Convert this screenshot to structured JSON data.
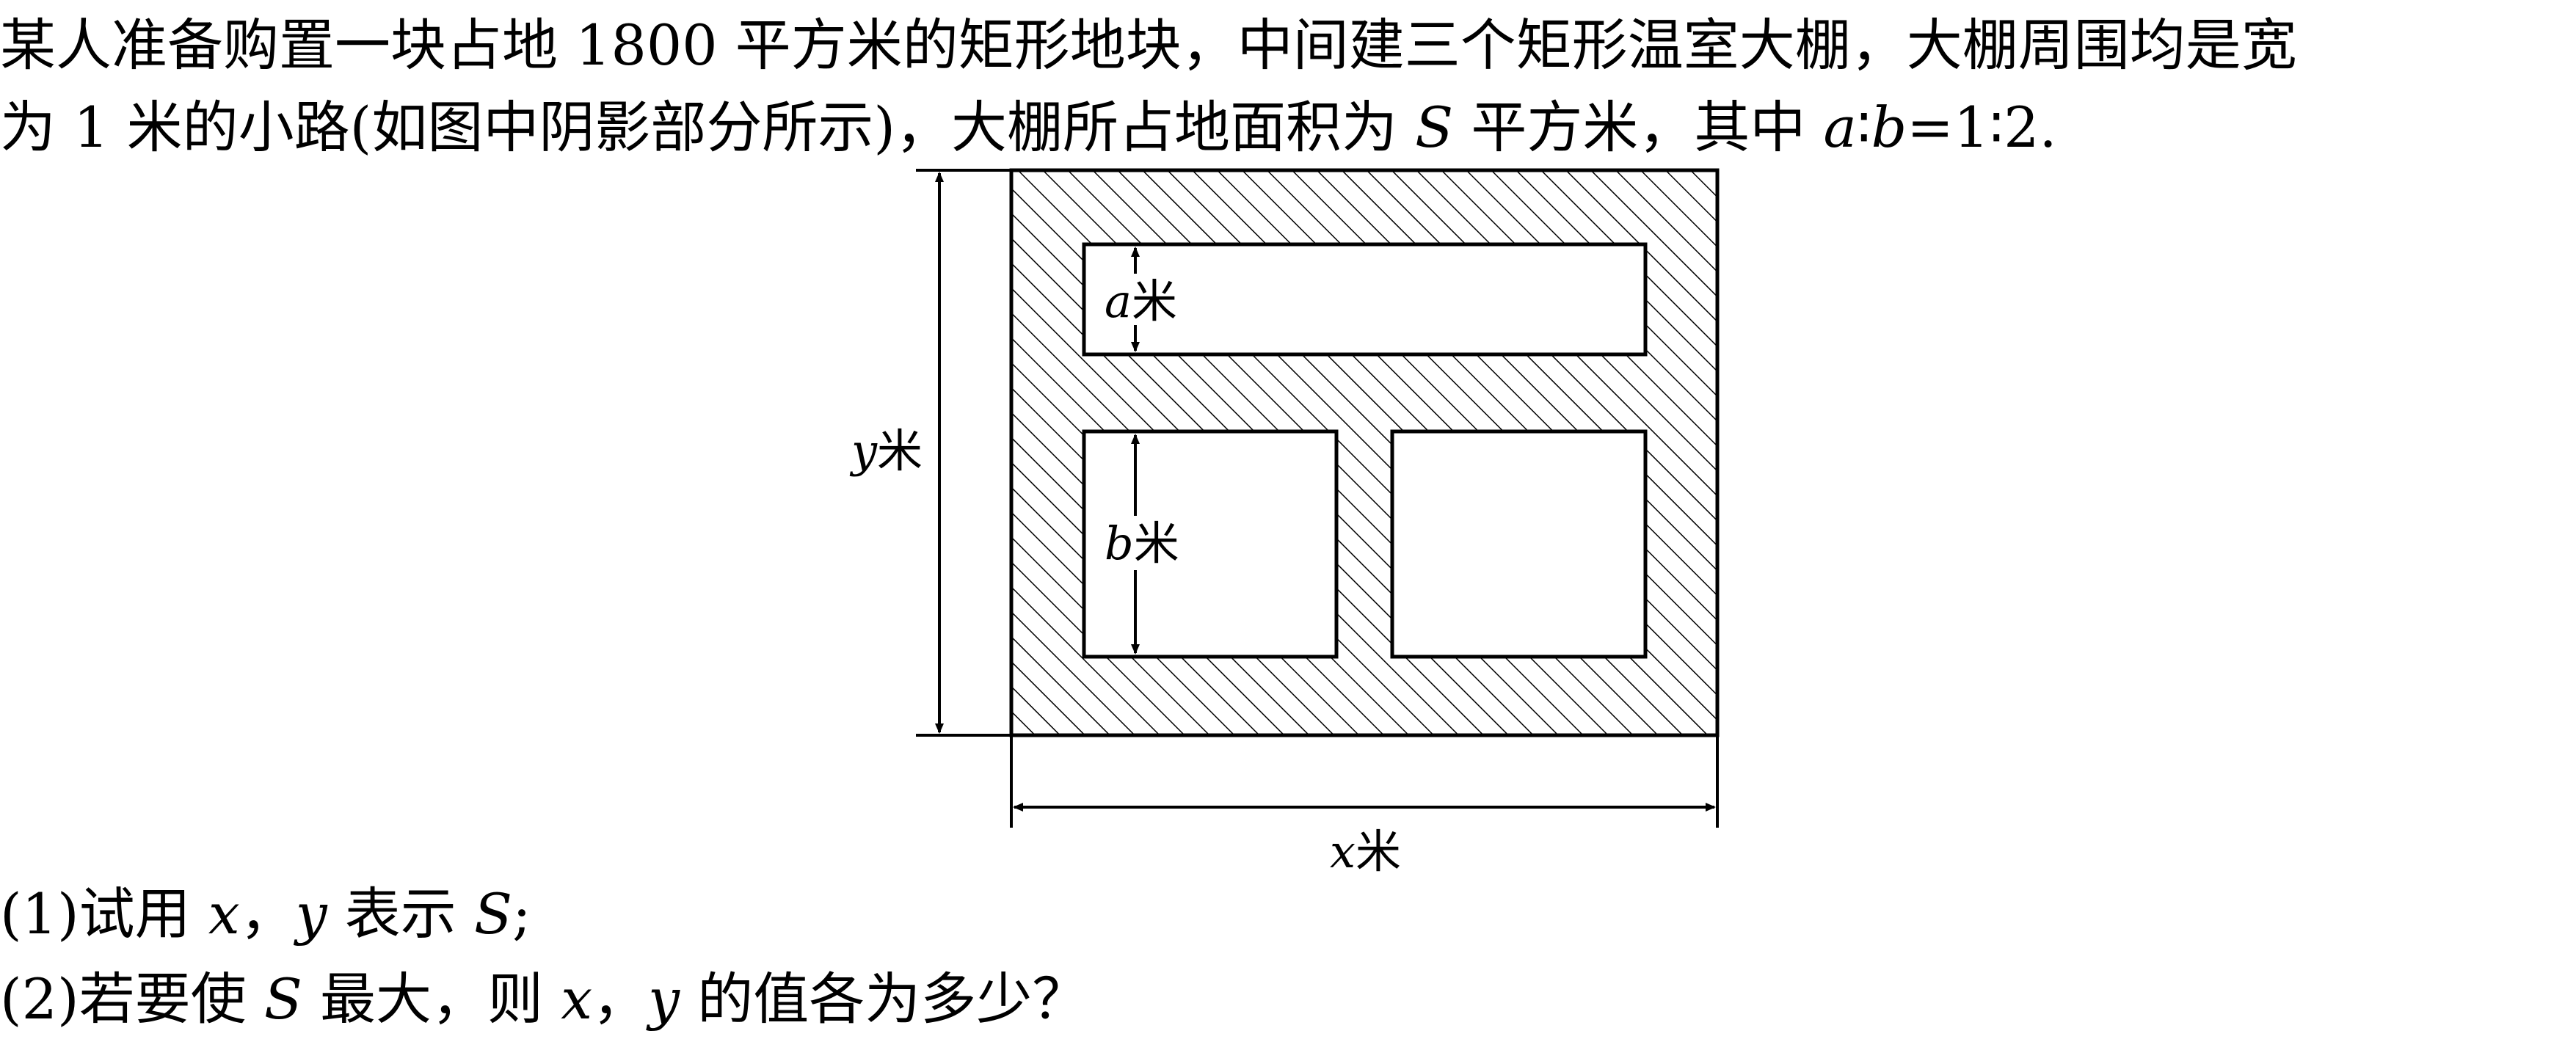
{
  "problem": {
    "line1": "某人准备购置一块占地 1800 平方米的矩形地块，中间建三个矩形温室大棚，大棚周围均是宽",
    "line2_part1": "为 1 米的小路(如图中阴影部分所示)，大棚所占地面积为 ",
    "line2_S": "S",
    "line2_part2": " 平方米，其中 ",
    "line2_a": "a",
    "line2_colon1": "∶",
    "line2_b": "b",
    "line2_ratio": "=1∶2."
  },
  "questions": {
    "q1_part1": "(1)试用 ",
    "q1_x": "x",
    "q1_comma": "，",
    "q1_y": "y",
    "q1_part2": " 表示 ",
    "q1_S": "S",
    "q1_end": ";",
    "q2_part1": "(2)若要使 ",
    "q2_S": "S",
    "q2_part2": " 最大，则 ",
    "q2_x": "x",
    "q2_comma": "，",
    "q2_y": "y",
    "q2_end": " 的值各为多少？"
  },
  "figure": {
    "label_a_var": "a",
    "label_a_unit": "米",
    "label_b_var": "b",
    "label_b_unit": "米",
    "label_y_var": "y",
    "label_y_unit": "米",
    "label_x_var": "x",
    "label_x_unit": "米"
  }
}
